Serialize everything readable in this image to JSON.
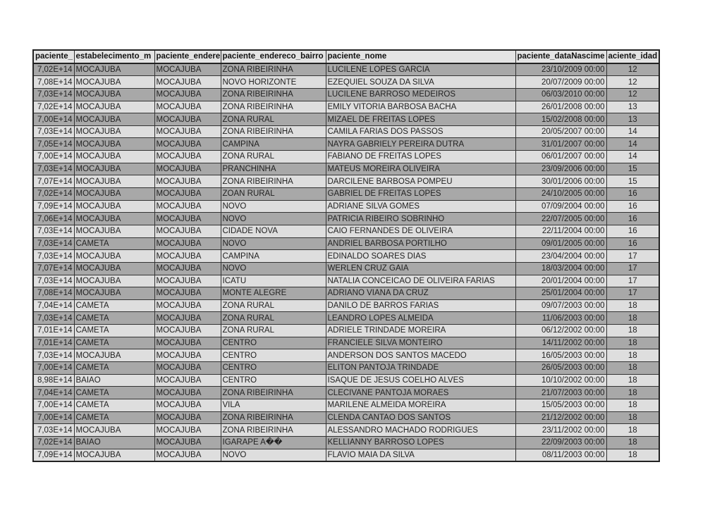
{
  "headers": [
    "paciente_",
    "estabelecimento_m",
    "paciente_endere",
    "paciente_endereco_bairro",
    "paciente_nome",
    "paciente_dataNascime",
    "aciente_idad"
  ],
  "rows": [
    [
      "7,02E+14",
      "MOCAJUBA",
      "MOCAJUBA",
      "ZONA RIBEIRINHA",
      "LUCILENE LOPES GARCIA",
      "23/10/2009 00:00",
      "12"
    ],
    [
      "7,08E+14",
      "MOCAJUBA",
      "MOCAJUBA",
      "NOVO HORIZONTE",
      "EZEQUIEL SOUZA DA SILVA",
      "20/07/2009 00:00",
      "12"
    ],
    [
      "7,03E+14",
      "MOCAJUBA",
      "MOCAJUBA",
      "ZONA RIBEIRINHA",
      "LUCILENE BARROSO MEDEIROS",
      "06/03/2010 00:00",
      "12"
    ],
    [
      "7,02E+14",
      "MOCAJUBA",
      "MOCAJUBA",
      "ZONA RIBEIRINHA",
      "EMILY VITORIA BARBOSA BACHA",
      "26/01/2008 00:00",
      "13"
    ],
    [
      "7,00E+14",
      "MOCAJUBA",
      "MOCAJUBA",
      "ZONA RURAL",
      "MIZAEL DE FREITAS LOPES",
      "15/02/2008 00:00",
      "13"
    ],
    [
      "7,03E+14",
      "MOCAJUBA",
      "MOCAJUBA",
      "ZONA RIBEIRINHA",
      "CAMILA FARIAS DOS PASSOS",
      "20/05/2007 00:00",
      "14"
    ],
    [
      "7,05E+14",
      "MOCAJUBA",
      "MOCAJUBA",
      "CAMPINA",
      "NAYRA GABRIELY PEREIRA DUTRA",
      "31/01/2007 00:00",
      "14"
    ],
    [
      "7,00E+14",
      "MOCAJUBA",
      "MOCAJUBA",
      "ZONA RURAL",
      "FABIANO DE FREITAS LOPES",
      "06/01/2007 00:00",
      "14"
    ],
    [
      "7,03E+14",
      "MOCAJUBA",
      "MOCAJUBA",
      "PRANCHINHA",
      "MATEUS MOREIRA OLIVEIRA",
      "23/09/2006 00:00",
      "15"
    ],
    [
      "7,07E+14",
      "MOCAJUBA",
      "MOCAJUBA",
      "ZONA RIBEIRINHA",
      "DARCILENE BARBOSA POMPEU",
      "30/01/2006 00:00",
      "15"
    ],
    [
      "7,02E+14",
      "MOCAJUBA",
      "MOCAJUBA",
      "ZOAN RURAL",
      "GABRIEL DE FREITAS LOPES",
      "24/10/2005 00:00",
      "16"
    ],
    [
      "7,09E+14",
      "MOCAJUBA",
      "MOCAJUBA",
      "NOVO",
      "ADRIANE SILVA GOMES",
      "07/09/2004 00:00",
      "16"
    ],
    [
      "7,06E+14",
      "MOCAJUBA",
      "MOCAJUBA",
      "NOVO",
      "PATRICIA RIBEIRO SOBRINHO",
      "22/07/2005 00:00",
      "16"
    ],
    [
      "7,03E+14",
      "MOCAJUBA",
      "MOCAJUBA",
      "CIDADE NOVA",
      "CAIO FERNANDES DE OLIVEIRA",
      "22/11/2004 00:00",
      "16"
    ],
    [
      "7,03E+14",
      "CAMETA",
      "MOCAJUBA",
      "NOVO",
      "ANDRIEL BARBOSA PORTILHO",
      "09/01/2005 00:00",
      "16"
    ],
    [
      "7,03E+14",
      "MOCAJUBA",
      "MOCAJUBA",
      "CAMPINA",
      "EDINALDO SOARES DIAS",
      "23/04/2004 00:00",
      "17"
    ],
    [
      "7,07E+14",
      "MOCAJUBA",
      "MOCAJUBA",
      "NOVO",
      "WERLEN CRUZ GAIA",
      "18/03/2004 00:00",
      "17"
    ],
    [
      "7,03E+14",
      "MOCAJUBA",
      "MOCAJUBA",
      "ICATU",
      "NATALIA CONCEICAO DE OLIVEIRA FARIAS",
      "20/01/2004 00:00",
      "17"
    ],
    [
      "7,08E+14",
      "MOCAJUBA",
      "MOCAJUBA",
      "MONTE ALEGRE",
      "ADRIANO VIANA DA CRUZ",
      "25/01/2004 00:00",
      "17"
    ],
    [
      "7,04E+14",
      "CAMETA",
      "MOCAJUBA",
      "ZONA RURAL",
      "DANILO DE BARROS FARIAS",
      "09/07/2003 00:00",
      "18"
    ],
    [
      "7,03E+14",
      "CAMETA",
      "MOCAJUBA",
      "ZONA RURAL",
      "LEANDRO LOPES ALMEIDA",
      "11/06/2003 00:00",
      "18"
    ],
    [
      "7,01E+14",
      "CAMETA",
      "MOCAJUBA",
      "ZONA RURAL",
      "ADRIELE TRINDADE MOREIRA",
      "06/12/2002 00:00",
      "18"
    ],
    [
      "7,01E+14",
      "CAMETA",
      "MOCAJUBA",
      "CENTRO",
      "FRANCIELE SILVA MONTEIRO",
      "14/11/2002 00:00",
      "18"
    ],
    [
      "7,03E+14",
      "MOCAJUBA",
      "MOCAJUBA",
      "CENTRO",
      "ANDERSON DOS SANTOS MACEDO",
      "16/05/2003 00:00",
      "18"
    ],
    [
      "7,00E+14",
      "CAMETA",
      "MOCAJUBA",
      "CENTRO",
      "ELITON PANTOJA TRINDADE",
      "26/05/2003 00:00",
      "18"
    ],
    [
      "8,98E+14",
      "BAIAO",
      "MOCAJUBA",
      "CENTRO",
      "ISAQUE DE JESUS COELHO ALVES",
      "10/10/2002 00:00",
      "18"
    ],
    [
      "7,04E+14",
      "CAMETA",
      "MOCAJUBA",
      "ZONA RIBEIRINHA",
      "CLECIVANE PANTOJA MORAES",
      "21/07/2003 00:00",
      "18"
    ],
    [
      "7,00E+14",
      "CAMETA",
      "MOCAJUBA",
      "VILA",
      "MARILENE ALMEIDA MOREIRA",
      "15/05/2003 00:00",
      "18"
    ],
    [
      "7,00E+14",
      "CAMETA",
      "MOCAJUBA",
      "ZONA RIBEIRINHA",
      "CLENDA CANTAO DOS SANTOS",
      "21/12/2002 00:00",
      "18"
    ],
    [
      "7,03E+14",
      "MOCAJUBA",
      "MOCAJUBA",
      "ZONA RIBEIRINHA",
      "ALESSANDRO MACHADO RODRIGUES",
      "23/11/2002 00:00",
      "18"
    ],
    [
      "7,02E+14",
      "BAIAO",
      "MOCAJUBA",
      "IGARAPE A��",
      "KELLIANNY BARROSO LOPES",
      "22/09/2003 00:00",
      "18"
    ],
    [
      "7,09E+14",
      "MOCAJUBA",
      "MOCAJUBA",
      "NOVO",
      "FLAVIO MAIA DA SILVA",
      "08/11/2003 00:00",
      "18"
    ]
  ],
  "colors": {
    "row_dark": "#a8a8a8",
    "row_light": "#dedede",
    "header": "#e4e4e4"
  }
}
